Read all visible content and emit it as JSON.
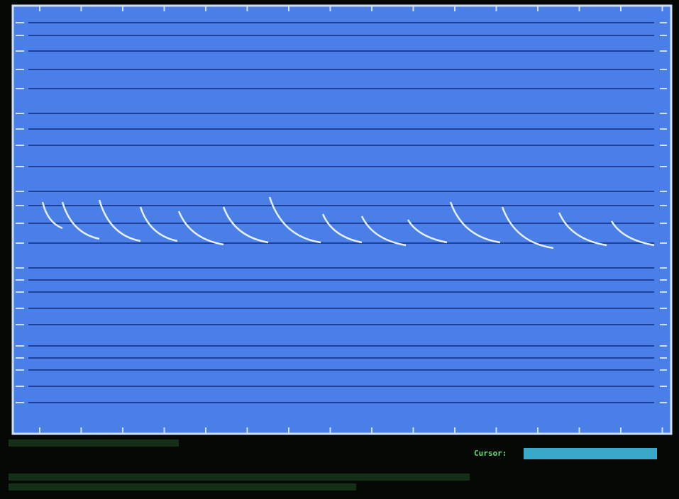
{
  "status": {
    "cursor_label": "Cursor:"
  }
}
